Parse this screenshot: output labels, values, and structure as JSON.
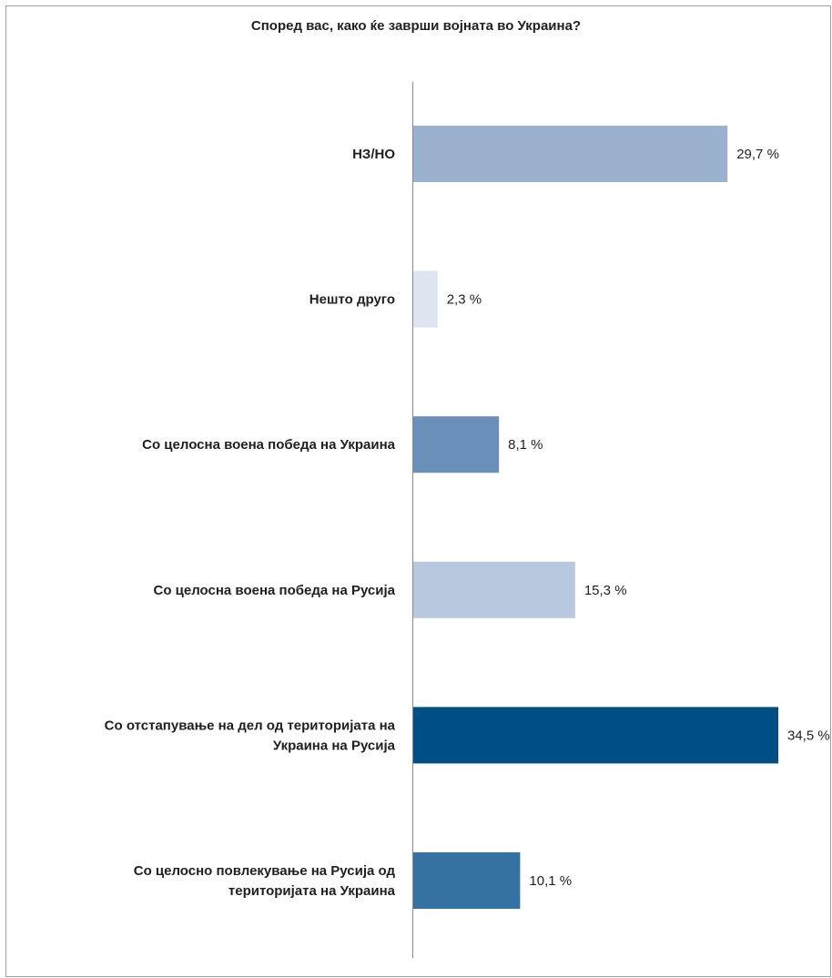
{
  "chart_data": {
    "type": "bar",
    "orientation": "horizontal",
    "title": "Според вас, како ќе заврши војната во Украина?",
    "categories": [
      [
        "НЗ/НО"
      ],
      [
        "Нешто друго"
      ],
      [
        "Со целосна воена победа на Украина"
      ],
      [
        "Со целосна воена победа на Русија"
      ],
      [
        "Со отстапување на дел од територијата на",
        "Украина на Русија"
      ],
      [
        "Со целосно повлекување на Русија од",
        "територијата на Украина"
      ]
    ],
    "values": [
      29.7,
      2.3,
      8.1,
      15.3,
      34.5,
      10.1
    ],
    "value_labels": [
      "29,7 %",
      "2,3 %",
      "8,1 %",
      "15,3 %",
      "34,5 %",
      "10,1 %"
    ],
    "colors": [
      "#9bb2cf",
      "#dce5f0",
      "#6890b8",
      "#b8c9df",
      "#004f84",
      "#3571a3"
    ],
    "xlim": [
      0,
      34.5
    ],
    "grid": false,
    "legend": "none"
  }
}
